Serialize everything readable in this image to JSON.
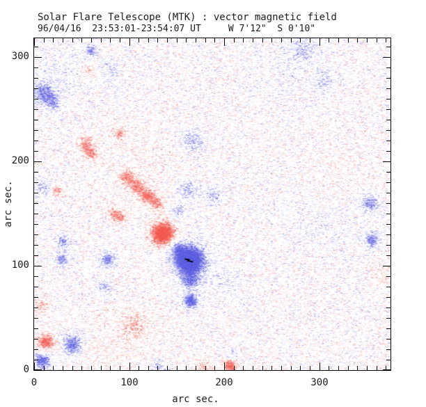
{
  "chart_data": {
    "type": "heatmap",
    "title": "Solar Flare Telescope (MTK) : vector magnetic field",
    "subtitle": "96/04/16  23:53:01-23:54:07 UT     W 7'12\"  S 0'10\"",
    "xlabel": "arc sec.",
    "ylabel": "arc sec.",
    "xlim": [
      0,
      375
    ],
    "ylim": [
      0,
      318
    ],
    "x_major_ticks": [
      0,
      100,
      200,
      300
    ],
    "y_major_ticks": [
      0,
      100,
      200,
      300
    ],
    "minor_tick_interval": 10,
    "grid": false,
    "legend": "none",
    "colors": {
      "positive_polarity": "#f2564c",
      "negative_polarity": "#5a5ae0",
      "background": "#ffffff",
      "axis": "#000000",
      "marker": "#000000"
    },
    "noise": {
      "seed": 1996,
      "amplitude": 0.4,
      "threshold": 0.1,
      "skip_probability": 0.3
    },
    "features": [
      {
        "x": 135,
        "y": 131,
        "sigma": 8,
        "amplitude": 1.15,
        "label": "main-positive-spot"
      },
      {
        "x": 163,
        "y": 105,
        "sigma": 10,
        "amplitude": -1.35,
        "label": "main-negative-spot"
      },
      {
        "x": 150,
        "y": 117,
        "sigma": 5,
        "amplitude": -0.5
      },
      {
        "x": 164,
        "y": 85,
        "sigma": 6,
        "amplitude": -0.45
      },
      {
        "x": 164,
        "y": 67,
        "sigma": 5,
        "amplitude": -0.85
      },
      {
        "x": 151,
        "y": 153,
        "sigma": 5,
        "amplitude": -0.35
      },
      {
        "x": 97,
        "y": 185,
        "sigma": 5,
        "amplitude": 0.55
      },
      {
        "x": 108,
        "y": 176,
        "sigma": 5,
        "amplitude": 0.6
      },
      {
        "x": 119,
        "y": 167,
        "sigma": 5,
        "amplitude": 0.65
      },
      {
        "x": 129,
        "y": 160,
        "sigma": 4.5,
        "amplitude": 0.5
      },
      {
        "x": 54,
        "y": 216,
        "sigma": 6,
        "amplitude": 0.5
      },
      {
        "x": 60,
        "y": 207,
        "sigma": 4,
        "amplitude": 0.4
      },
      {
        "x": 89,
        "y": 227,
        "sigma": 4,
        "amplitude": 0.45
      },
      {
        "x": 10,
        "y": 265,
        "sigma": 8,
        "amplitude": -0.5
      },
      {
        "x": 20,
        "y": 256,
        "sigma": 5,
        "amplitude": -0.35
      },
      {
        "x": 166,
        "y": 220,
        "sigma": 7,
        "amplitude": -0.4
      },
      {
        "x": 161,
        "y": 173,
        "sigma": 6,
        "amplitude": -0.4
      },
      {
        "x": 188,
        "y": 168,
        "sigma": 6,
        "amplitude": -0.35
      },
      {
        "x": 23,
        "y": 173,
        "sigma": 4,
        "amplitude": 0.45
      },
      {
        "x": 9,
        "y": 175,
        "sigma": 6,
        "amplitude": -0.35
      },
      {
        "x": 84,
        "y": 150,
        "sigma": 5,
        "amplitude": 0.45
      },
      {
        "x": 91,
        "y": 146,
        "sigma": 4,
        "amplitude": 0.35
      },
      {
        "x": 30,
        "y": 124,
        "sigma": 4,
        "amplitude": -0.5
      },
      {
        "x": 29,
        "y": 107,
        "sigma": 4.5,
        "amplitude": -0.55
      },
      {
        "x": 77,
        "y": 106,
        "sigma": 5.5,
        "amplitude": -0.55
      },
      {
        "x": 73,
        "y": 80,
        "sigma": 4.5,
        "amplitude": -0.4
      },
      {
        "x": 59,
        "y": 306,
        "sigma": 4,
        "amplitude": -0.55
      },
      {
        "x": 56,
        "y": 288,
        "sigma": 5,
        "amplitude": 0.3
      },
      {
        "x": 80,
        "y": 287,
        "sigma": 6,
        "amplitude": -0.25
      },
      {
        "x": 12,
        "y": 27,
        "sigma": 6,
        "amplitude": 0.7
      },
      {
        "x": 40,
        "y": 25,
        "sigma": 7,
        "amplitude": -0.65
      },
      {
        "x": 8,
        "y": 9,
        "sigma": 6,
        "amplitude": -0.7
      },
      {
        "x": 206,
        "y": 5,
        "sigma": 5,
        "amplitude": 0.75
      },
      {
        "x": 178,
        "y": 3,
        "sigma": 6,
        "amplitude": 0.35
      },
      {
        "x": 209,
        "y": 14,
        "sigma": 4,
        "amplitude": -0.4
      },
      {
        "x": 130,
        "y": 4,
        "sigma": 4,
        "amplitude": -0.4
      },
      {
        "x": 353,
        "y": 160,
        "sigma": 6,
        "amplitude": -0.5
      },
      {
        "x": 355,
        "y": 125,
        "sigma": 5,
        "amplitude": -0.6
      },
      {
        "x": 365,
        "y": 92,
        "sigma": 8,
        "amplitude": 0.18
      },
      {
        "x": 105,
        "y": 43,
        "sigma": 8,
        "amplitude": 0.3
      },
      {
        "x": 6,
        "y": 62,
        "sigma": 6,
        "amplitude": 0.35
      },
      {
        "x": 283,
        "y": 307,
        "sigma": 8,
        "amplitude": -0.28
      },
      {
        "x": 305,
        "y": 278,
        "sigma": 7,
        "amplitude": -0.22
      },
      {
        "x": 198,
        "y": 85,
        "sigma": 10,
        "amplitude": -0.14
      },
      {
        "x": 90,
        "y": 30,
        "sigma": 28,
        "amplitude": 0.1
      },
      {
        "x": 110,
        "y": 200,
        "sigma": 30,
        "amplitude": 0.07
      },
      {
        "x": 25,
        "y": 285,
        "sigma": 22,
        "amplitude": -0.09
      },
      {
        "x": 300,
        "y": 145,
        "sigma": 25,
        "amplitude": -0.07
      },
      {
        "x": 315,
        "y": 188,
        "sigma": 22,
        "amplitude": 0.07
      },
      {
        "x": 270,
        "y": 290,
        "sigma": 25,
        "amplitude": -0.07
      }
    ],
    "marker_polyline": [
      [
        158.5,
        106.5
      ],
      [
        162.9,
        105.8
      ],
      [
        161.8,
        104.8
      ],
      [
        167.3,
        103.8
      ]
    ]
  }
}
